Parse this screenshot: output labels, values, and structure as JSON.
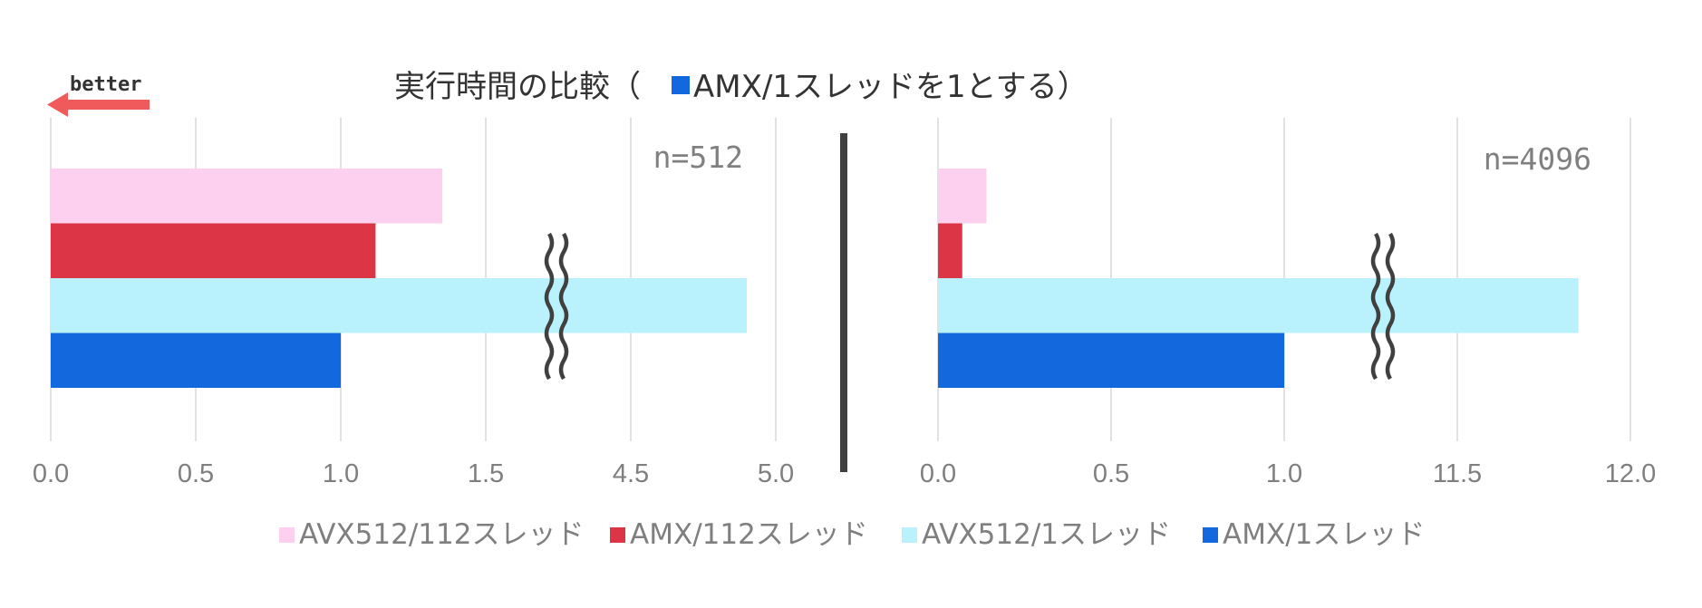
{
  "chart_data": {
    "type": "bar",
    "orientation": "horizontal",
    "title": "実行時間の比較（",
    "title_marker_color": "#1368de",
    "title_suffix": "AMX/1スレッドを1とする）",
    "better_label": "better",
    "better_color": "#f05a5a",
    "grid": true,
    "axis_break": true,
    "legend_position": "bottom",
    "panels": [
      {
        "label": "n=512",
        "tick_labels": [
          "0.0",
          "0.5",
          "1.0",
          "1.5",
          "4.5",
          "5.0"
        ],
        "axis_values": [
          0.0,
          0.5,
          1.0,
          1.5,
          4.5,
          5.0
        ],
        "break_between": [
          1.5,
          4.5
        ],
        "series": [
          {
            "name": "AVX512/112スレッド",
            "value": 1.35,
            "color": "#fdd0ef"
          },
          {
            "name": "AMX/112スレッド",
            "value": 1.12,
            "color": "#dc3545"
          },
          {
            "name": "AVX512/1スレッド",
            "value": 4.9,
            "color": "#b9f2fd"
          },
          {
            "name": "AMX/1スレッド",
            "value": 1.0,
            "color": "#1368de"
          }
        ]
      },
      {
        "label": "n=4096",
        "tick_labels": [
          "0.0",
          "0.5",
          "1.0",
          "11.5",
          "12.0"
        ],
        "axis_values": [
          0.0,
          0.5,
          1.0,
          11.5,
          12.0
        ],
        "break_between": [
          1.0,
          11.5
        ],
        "series": [
          {
            "name": "AVX512/112スレッド",
            "value": 0.14,
            "color": "#fdd0ef"
          },
          {
            "name": "AMX/112スレッド",
            "value": 0.07,
            "color": "#dc3545"
          },
          {
            "name": "AVX512/1スレッド",
            "value": 11.85,
            "color": "#b9f2fd"
          },
          {
            "name": "AMX/1スレッド",
            "value": 1.0,
            "color": "#1368de"
          }
        ]
      }
    ],
    "legend": [
      {
        "name": "AVX512/112スレッド",
        "color": "#fdd0ef"
      },
      {
        "name": "AMX/112スレッド",
        "color": "#dc3545"
      },
      {
        "name": "AVX512/1スレッド",
        "color": "#b9f2fd"
      },
      {
        "name": "AMX/1スレッド",
        "color": "#1368de"
      }
    ]
  }
}
